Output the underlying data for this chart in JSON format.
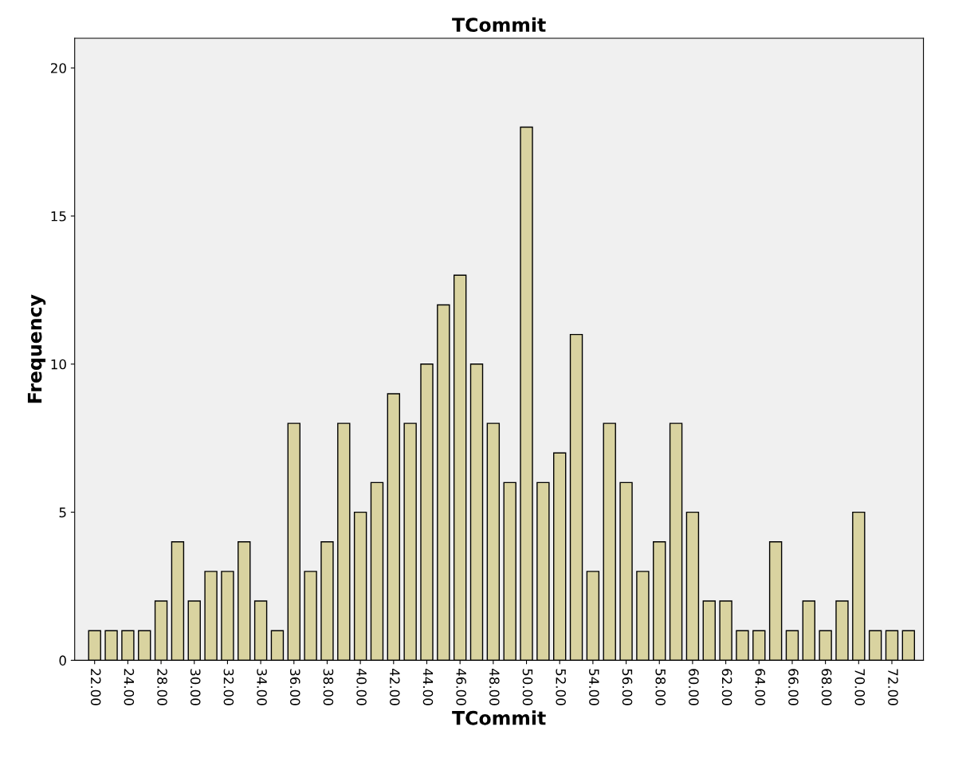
{
  "chart_data": {
    "type": "bar",
    "title": "TCommit",
    "xlabel": "TCommit",
    "ylabel": "Frequency",
    "categories": [
      "22.00",
      null,
      "24.00",
      null,
      "28.00",
      null,
      "30.00",
      null,
      "32.00",
      null,
      "34.00",
      null,
      "36.00",
      null,
      "38.00",
      null,
      "40.00",
      null,
      "42.00",
      null,
      "44.00",
      null,
      "46.00",
      null,
      "48.00",
      null,
      "50.00",
      null,
      "52.00",
      null,
      "54.00",
      null,
      "56.00",
      null,
      "58.00",
      null,
      "60.00",
      null,
      "62.00",
      null,
      "64.00",
      null,
      "66.00",
      null,
      "68.00",
      null,
      "70.00",
      null,
      "72.00",
      null
    ],
    "values": [
      1,
      1,
      1,
      1,
      2,
      4,
      2,
      3,
      3,
      4,
      2,
      1,
      8,
      3,
      4,
      8,
      5,
      6,
      9,
      8,
      10,
      12,
      13,
      10,
      8,
      6,
      18,
      6,
      7,
      11,
      3,
      8,
      6,
      3,
      4,
      8,
      5,
      2,
      2,
      1,
      1,
      4,
      1,
      2,
      1,
      2,
      5,
      1,
      1,
      1
    ],
    "color": "#d9d3a0",
    "ylim": [
      0,
      21
    ],
    "yticks": [
      0,
      5,
      10,
      15,
      20
    ],
    "grid": false,
    "legend": false
  }
}
